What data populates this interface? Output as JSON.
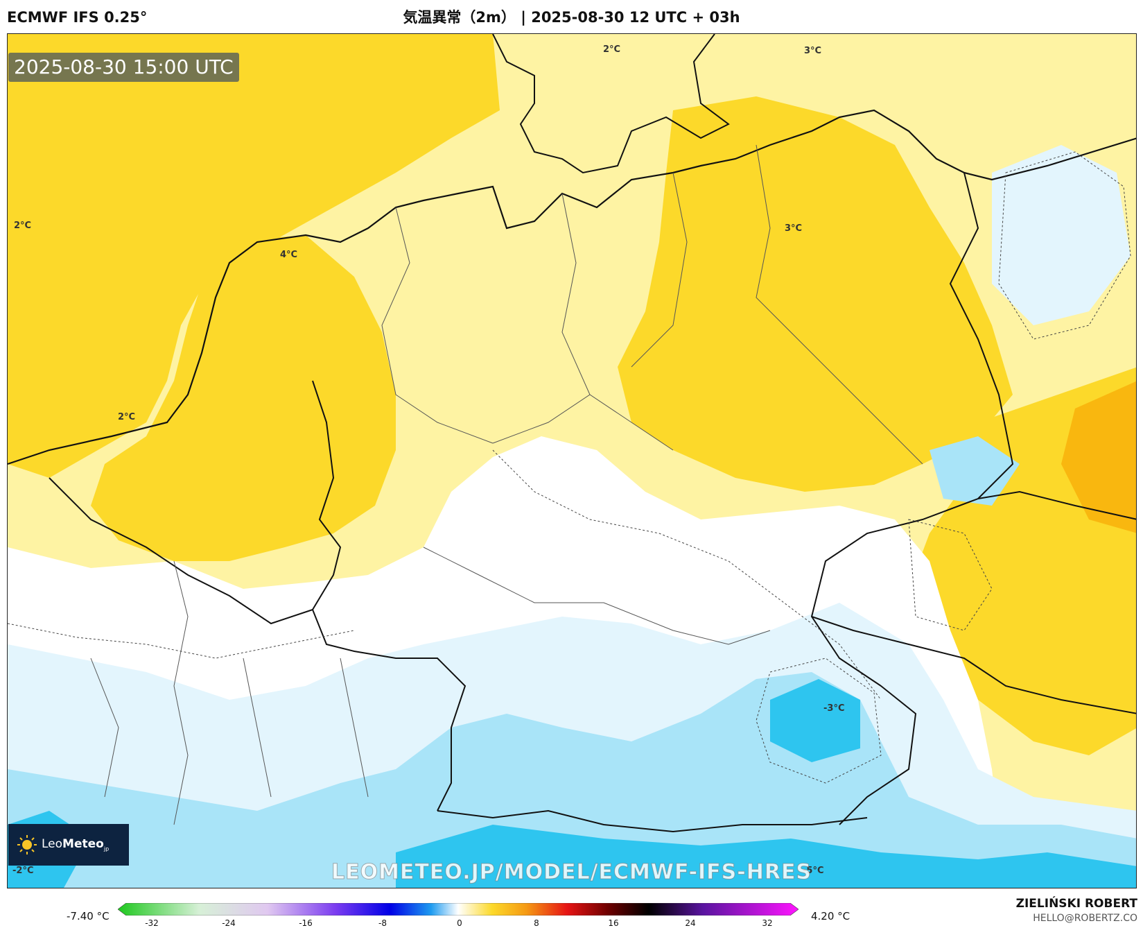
{
  "header": {
    "model": "ECMWF IFS 0.25°",
    "title": "気温異常（2m） | 2025-08-30 12 UTC + 03h"
  },
  "map": {
    "valid_time": "2025-08-30 15:00 UTC",
    "contour_labels": [
      "2°C",
      "4°C",
      "2°C",
      "2°C",
      "3°C",
      "3°C",
      "-3°C",
      "-2°C",
      "-5°C"
    ],
    "colors": {
      "warm_light": "#fef3a3",
      "warm": "#fcd92a",
      "warm_strong": "#f9b70f",
      "neutral": "#ffffff",
      "cool_light": "#e3f5fd",
      "cool": "#a9e4f8",
      "cool_strong": "#2ec5ef"
    }
  },
  "logo": {
    "brand_light": "Leo",
    "brand_bold": "Meteo",
    "suffix": "jp"
  },
  "watermark": "LEOMETEO.JP/MODEL/ECMWF-IFS-HRES",
  "colorbar": {
    "min_label": "-7.40 °C",
    "max_label": "4.20 °C",
    "ticks": [
      "-32",
      "-24",
      "-16",
      "-8",
      "0",
      "8",
      "16",
      "24",
      "32"
    ]
  },
  "author": {
    "name": "ZIELIŃSKI ROBERT",
    "email": "HELLO@ROBERTZ.CO"
  }
}
